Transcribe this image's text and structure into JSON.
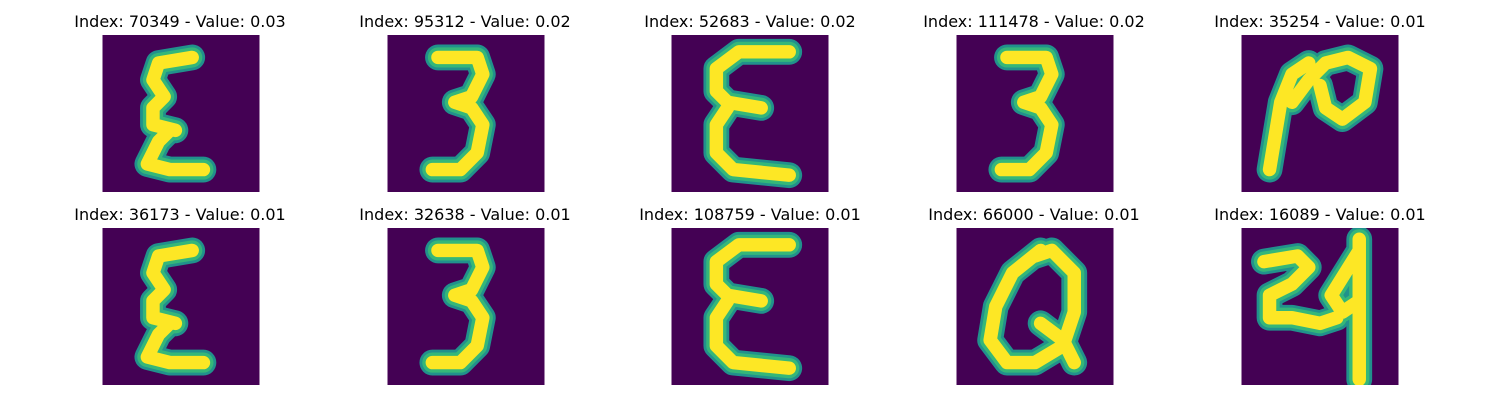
{
  "colors": {
    "background": "#440154",
    "stroke_core": "#fde725",
    "stroke_edge": "#35b779",
    "stroke_halo": "#21918c"
  },
  "figures": [
    {
      "title": "Index: 70349 - Value: 0.03",
      "glyph": "script-e"
    },
    {
      "title": "Index: 95312 - Value: 0.02",
      "glyph": "three"
    },
    {
      "title": "Index: 52683 - Value: 0.02",
      "glyph": "epsilon"
    },
    {
      "title": "Index: 111478 - Value: 0.02",
      "glyph": "three"
    },
    {
      "title": "Index: 35254 - Value: 0.01",
      "glyph": "n-loop"
    },
    {
      "title": "Index: 36173 - Value: 0.01",
      "glyph": "script-e"
    },
    {
      "title": "Index: 32638 - Value: 0.01",
      "glyph": "three"
    },
    {
      "title": "Index: 108759 - Value: 0.01",
      "glyph": "epsilon"
    },
    {
      "title": "Index: 66000 - Value: 0.01",
      "glyph": "q-loop"
    },
    {
      "title": "Index: 16089 - Value: 0.01",
      "glyph": "two-four"
    }
  ]
}
